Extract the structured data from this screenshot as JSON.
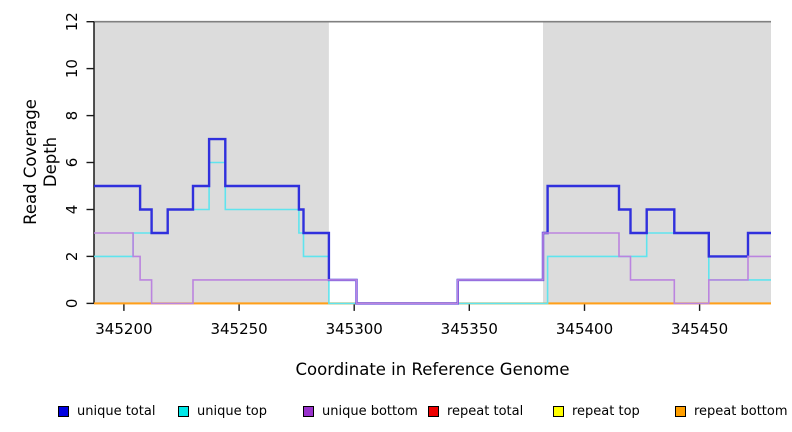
{
  "chart_data": {
    "type": "line",
    "subtype": "step-coverage",
    "title": "",
    "xlabel": "Coordinate in Reference Genome",
    "ylabel": "Read Coverage Depth",
    "xlim": [
      345187,
      345481
    ],
    "ylim": [
      0,
      12
    ],
    "x_ticks": [
      345200,
      345250,
      345300,
      345350,
      345400,
      345450
    ],
    "y_ticks": [
      0,
      2,
      4,
      6,
      8,
      10,
      12
    ],
    "grid": false,
    "legend_position": "bottom",
    "shade_color": "#DCDCDC",
    "shaded_regions": [
      {
        "x0": 345187,
        "x1": 345289
      },
      {
        "x0": 345382,
        "x1": 345481
      }
    ],
    "series": [
      {
        "name": "unique total",
        "color": "#3030DD",
        "legend_color": "#0000E0",
        "width": 2.4,
        "steps": [
          [
            345187,
            5
          ],
          [
            345207,
            4
          ],
          [
            345212,
            3
          ],
          [
            345219,
            4
          ],
          [
            345230,
            5
          ],
          [
            345237,
            7
          ],
          [
            345244,
            5
          ],
          [
            345276,
            4
          ],
          [
            345278,
            3
          ],
          [
            345289,
            1
          ],
          [
            345301,
            0
          ],
          [
            345345,
            1
          ],
          [
            345382,
            3
          ],
          [
            345384,
            5
          ],
          [
            345415,
            4
          ],
          [
            345420,
            3
          ],
          [
            345427,
            4
          ],
          [
            345439,
            3
          ],
          [
            345454,
            2
          ],
          [
            345471,
            3
          ]
        ]
      },
      {
        "name": "unique top",
        "color": "#5FE4EE",
        "legend_color": "#00E8E8",
        "width": 1.6,
        "steps": [
          [
            345187,
            2
          ],
          [
            345204,
            3
          ],
          [
            345219,
            4
          ],
          [
            345237,
            6
          ],
          [
            345244,
            4
          ],
          [
            345276,
            3
          ],
          [
            345278,
            2
          ],
          [
            345289,
            0
          ],
          [
            345384,
            2
          ],
          [
            345427,
            3
          ],
          [
            345454,
            1
          ]
        ]
      },
      {
        "name": "unique bottom",
        "color": "#BB84DF",
        "legend_color": "#9932CC",
        "width": 1.6,
        "steps": [
          [
            345187,
            3
          ],
          [
            345204,
            2
          ],
          [
            345207,
            1
          ],
          [
            345212,
            0
          ],
          [
            345230,
            1
          ],
          [
            345301,
            0
          ],
          [
            345345,
            1
          ],
          [
            345382,
            3
          ],
          [
            345415,
            2
          ],
          [
            345420,
            1
          ],
          [
            345439,
            0
          ],
          [
            345454,
            1
          ],
          [
            345471,
            2
          ]
        ]
      },
      {
        "name": "repeat total",
        "color": "#DE0000",
        "legend_color": "#EE0000",
        "width": 1.5,
        "steps": [
          [
            345187,
            0
          ]
        ]
      },
      {
        "name": "repeat top",
        "color": "#FFFF00",
        "legend_color": "#FFFF00",
        "width": 1.5,
        "steps": [
          [
            345187,
            0
          ]
        ]
      },
      {
        "name": "repeat bottom",
        "color": "#FF9F1A",
        "legend_color": "#FF9F00",
        "width": 2,
        "steps": [
          [
            345187,
            0
          ]
        ]
      }
    ],
    "draw_order": [
      3,
      4,
      5,
      1,
      0,
      2
    ]
  }
}
